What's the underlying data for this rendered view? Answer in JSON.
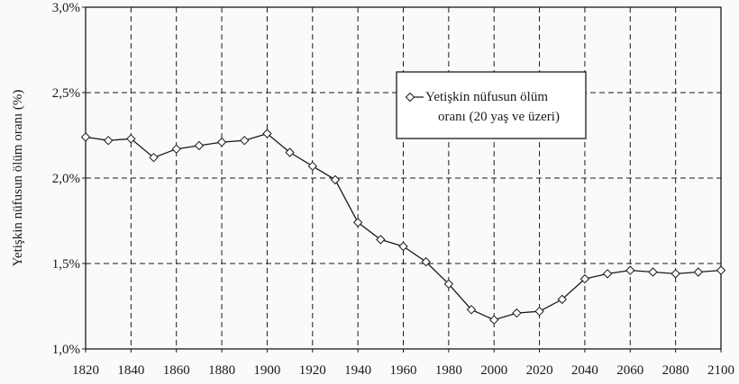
{
  "chart_data": {
    "type": "line",
    "title": "",
    "xlabel": "",
    "ylabel": "Yetişkin nüfusun ölüm oranı (%)",
    "xlim": [
      1820,
      2100
    ],
    "ylim": [
      1.0,
      3.0
    ],
    "x_ticks": [
      1820,
      1840,
      1860,
      1880,
      1900,
      1920,
      1940,
      1960,
      1980,
      2000,
      2020,
      2040,
      2060,
      2080,
      2100
    ],
    "y_ticks": [
      {
        "value": 1.0,
        "label": "1,0%"
      },
      {
        "value": 1.5,
        "label": "1,5%"
      },
      {
        "value": 2.0,
        "label": "2,0%"
      },
      {
        "value": 2.5,
        "label": "2,5%"
      },
      {
        "value": 3.0,
        "label": "3,0%"
      }
    ],
    "grid": true,
    "legend_position": "top-right",
    "series": [
      {
        "name": "Yetişkin nüfusun ölüm oranı (20 yaş ve üzeri)",
        "name_lines": [
          "Yetişkin nüfusun ölüm",
          "oranı (20 yaş ve üzeri)"
        ],
        "marker": "diamond",
        "color": "#1a1a1a",
        "x": [
          1820,
          1830,
          1840,
          1850,
          1860,
          1870,
          1880,
          1890,
          1900,
          1910,
          1920,
          1930,
          1940,
          1950,
          1960,
          1970,
          1980,
          1990,
          2000,
          2010,
          2020,
          2030,
          2040,
          2050,
          2060,
          2070,
          2080,
          2090,
          2100
        ],
        "y": [
          2.24,
          2.22,
          2.23,
          2.12,
          2.17,
          2.19,
          2.21,
          2.22,
          2.26,
          2.15,
          2.07,
          1.99,
          1.74,
          1.64,
          1.6,
          1.51,
          1.38,
          1.23,
          1.17,
          1.21,
          1.22,
          1.29,
          1.41,
          1.44,
          1.46,
          1.45,
          1.44,
          1.45,
          1.46
        ]
      }
    ]
  }
}
